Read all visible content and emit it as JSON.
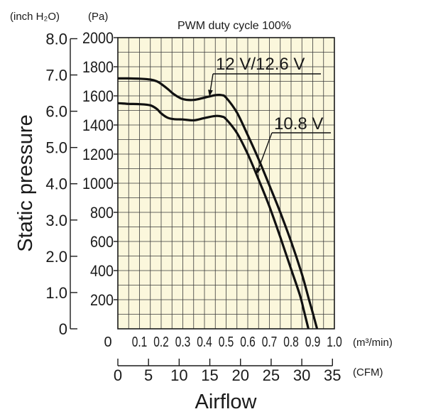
{
  "chart_data": {
    "type": "line",
    "title": "PWM duty cycle 100%",
    "xlabel": "Airflow",
    "ylabel": "Static pressure",
    "units": {
      "y_left_outer": "(inch H₂O)",
      "y_left_inner": "(Pa)",
      "x_primary": "(m³/min)",
      "x_secondary": "(CFM)"
    },
    "xlim": [
      0,
      1.0
    ],
    "ylim": [
      0,
      2000
    ],
    "x_ticks": [
      "0",
      "0.1",
      "0.2",
      "0.3",
      "0.4",
      "0.5",
      "0.6",
      "0.7",
      "0.8",
      "0.9",
      "1.0"
    ],
    "y_ticks_pa": [
      "200",
      "400",
      "600",
      "800",
      "1000",
      "1200",
      "1400",
      "1600",
      "1800",
      "2000"
    ],
    "y_ticks_inch": [
      "0",
      "1.0",
      "2.0",
      "3.0",
      "4.0",
      "5.0",
      "6.0",
      "7.0",
      "8.0"
    ],
    "cfm_ticks": [
      "0",
      "5",
      "10",
      "15",
      "20",
      "25",
      "30",
      "35"
    ],
    "grid": true,
    "series": [
      {
        "name": "12 V/12.6 V",
        "x": [
          0.0,
          0.05,
          0.1,
          0.15,
          0.18,
          0.2,
          0.23,
          0.26,
          0.3,
          0.35,
          0.4,
          0.45,
          0.48,
          0.5,
          0.55,
          0.6,
          0.65,
          0.7,
          0.75,
          0.8,
          0.85,
          0.88,
          0.9,
          0.92
        ],
        "y": [
          1720,
          1720,
          1718,
          1712,
          1700,
          1682,
          1648,
          1610,
          1578,
          1572,
          1588,
          1605,
          1605,
          1588,
          1485,
          1330,
          1165,
          985,
          800,
          600,
          375,
          215,
          110,
          0
        ]
      },
      {
        "name": "10.8 V",
        "x": [
          0.0,
          0.05,
          0.1,
          0.15,
          0.18,
          0.2,
          0.23,
          0.26,
          0.3,
          0.35,
          0.4,
          0.45,
          0.48,
          0.5,
          0.55,
          0.6,
          0.65,
          0.7,
          0.75,
          0.8,
          0.84,
          0.86,
          0.88
        ],
        "y": [
          1550,
          1545,
          1543,
          1535,
          1510,
          1480,
          1450,
          1440,
          1438,
          1432,
          1448,
          1462,
          1458,
          1440,
          1345,
          1200,
          1025,
          840,
          630,
          410,
          235,
          120,
          0
        ]
      }
    ]
  }
}
